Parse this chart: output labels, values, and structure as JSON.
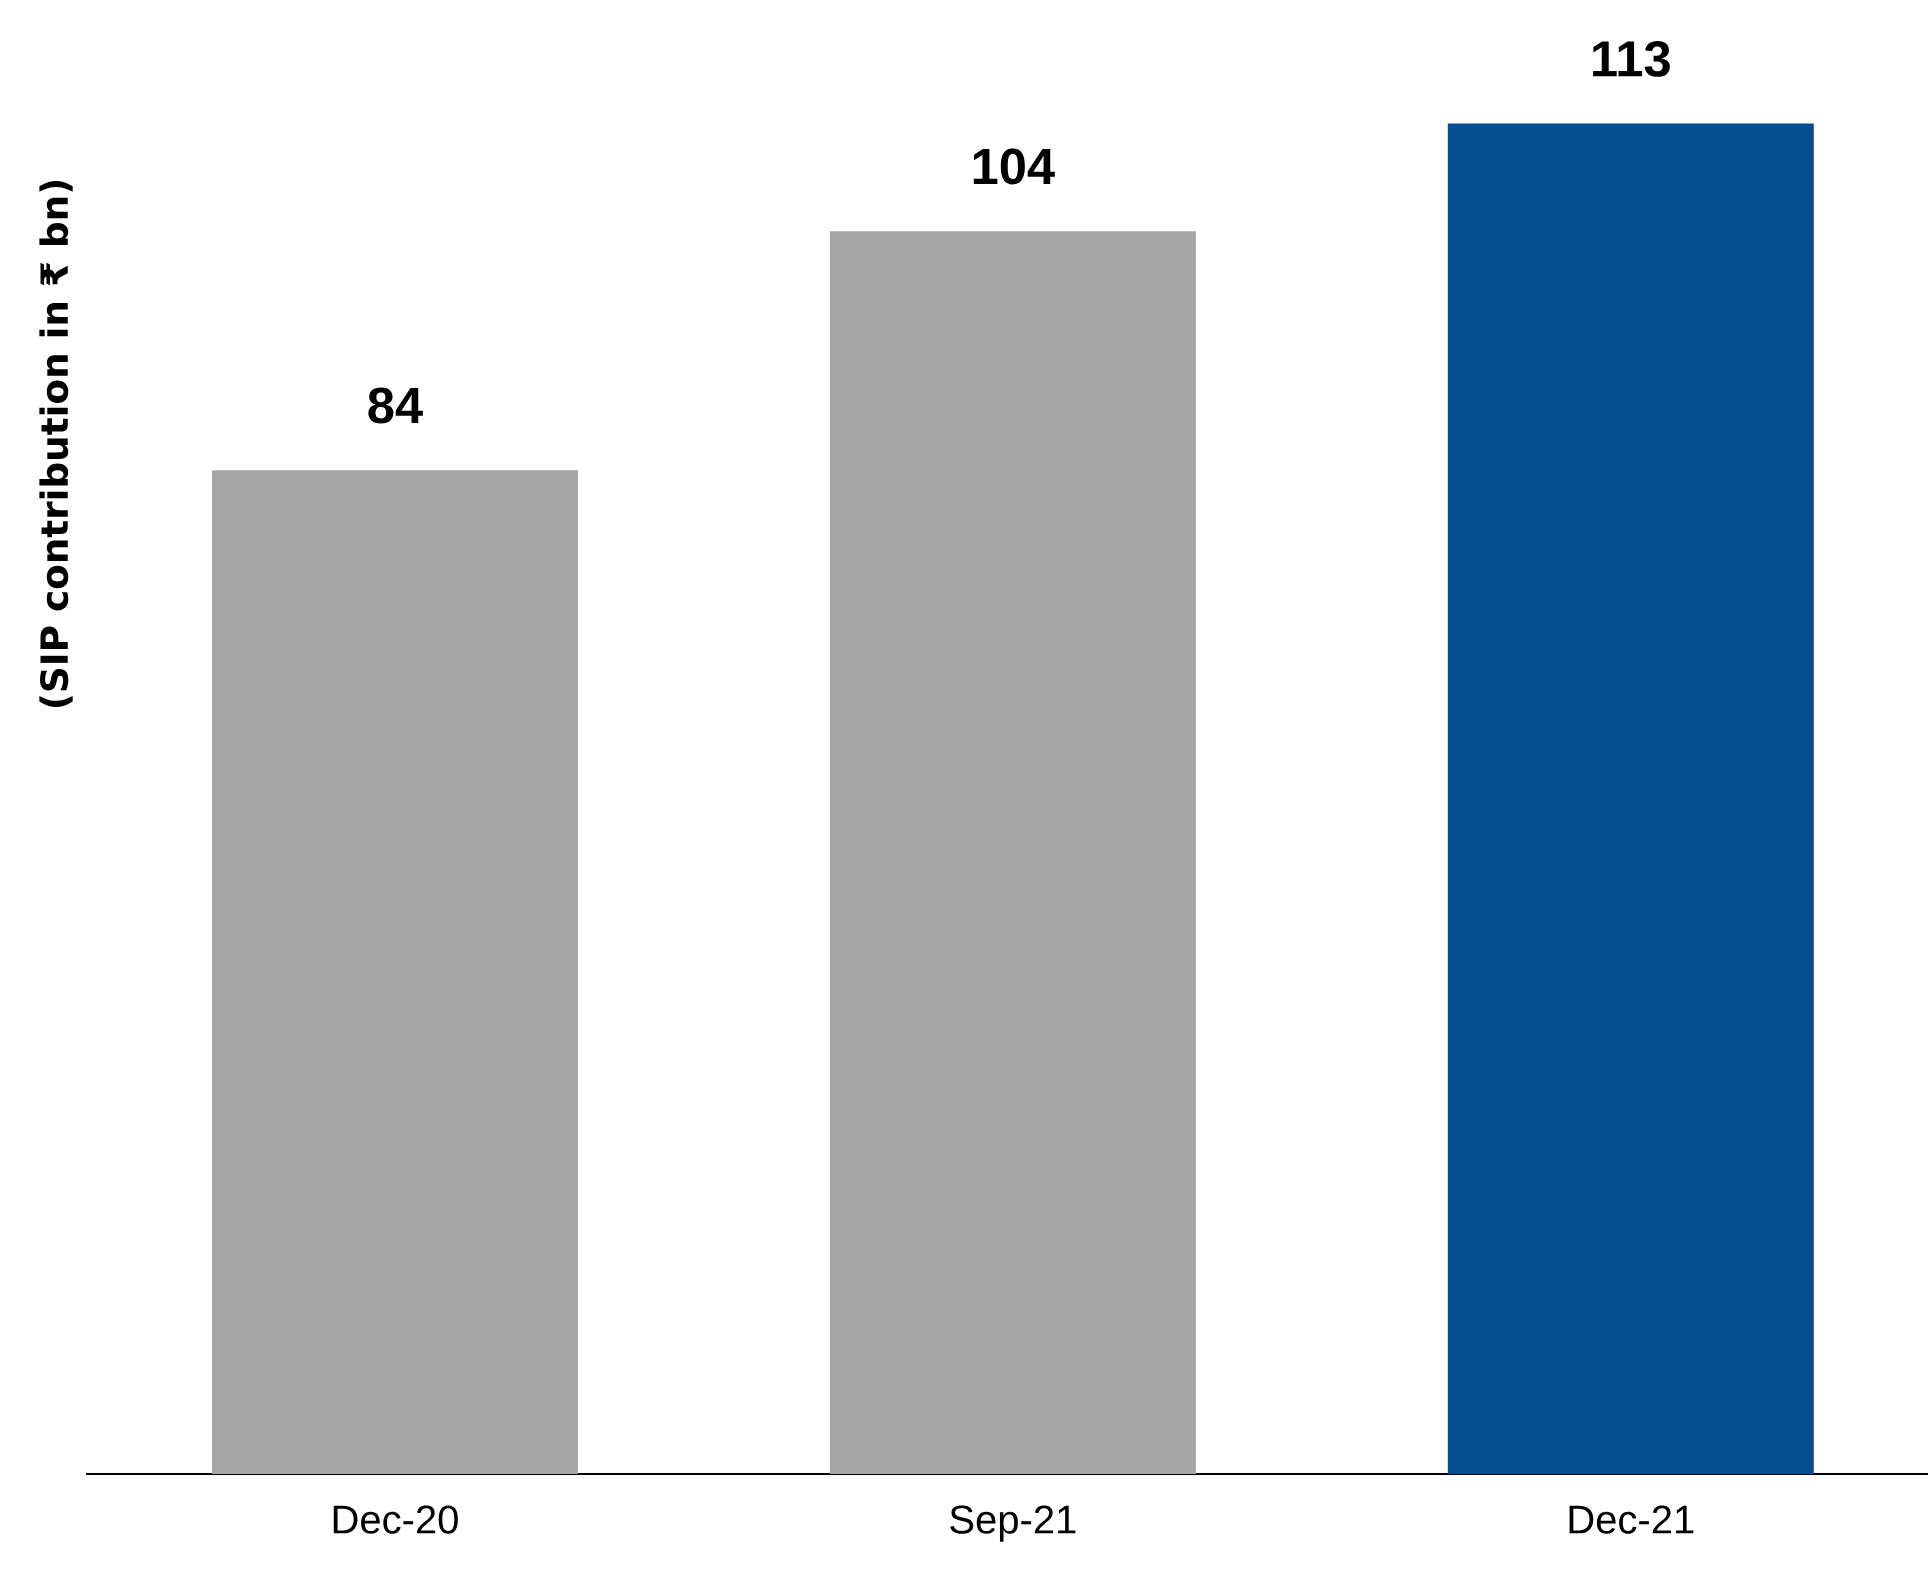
{
  "chart_data": {
    "type": "bar",
    "ylabel": "(SIP contribution in ₹ bn)",
    "categories": [
      "Dec-20",
      "Sep-21",
      "Dec-21"
    ],
    "values": [
      84,
      104,
      113
    ],
    "colors": [
      "#a5a5a5",
      "#a5a5a5",
      "#034f8f"
    ],
    "data_labels": true
  }
}
